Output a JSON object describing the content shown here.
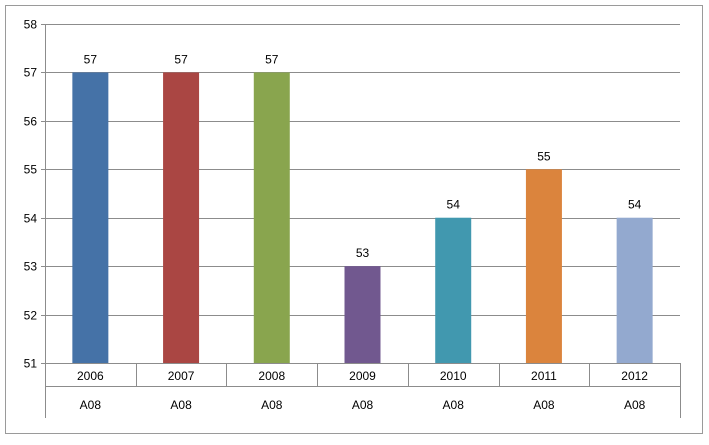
{
  "chart_data": {
    "type": "bar",
    "categories": [
      "2006",
      "2007",
      "2008",
      "2009",
      "2010",
      "2011",
      "2012"
    ],
    "group_labels": [
      "A08",
      "A08",
      "A08",
      "A08",
      "A08",
      "A08",
      "A08"
    ],
    "values": [
      57,
      57,
      57,
      53,
      54,
      55,
      54
    ],
    "data_labels": [
      "57",
      "57",
      "57",
      "53",
      "54",
      "55",
      "54"
    ],
    "colors": [
      "#4572A7",
      "#AA4643",
      "#89A54E",
      "#71588F",
      "#4198AF",
      "#DB843D",
      "#93A9CF"
    ],
    "ylim": [
      51,
      58
    ],
    "yticks": [
      "51",
      "52",
      "53",
      "54",
      "55",
      "56",
      "57",
      "58"
    ],
    "grid": true,
    "legend": "none",
    "title": "",
    "xlabel": "",
    "ylabel": ""
  }
}
